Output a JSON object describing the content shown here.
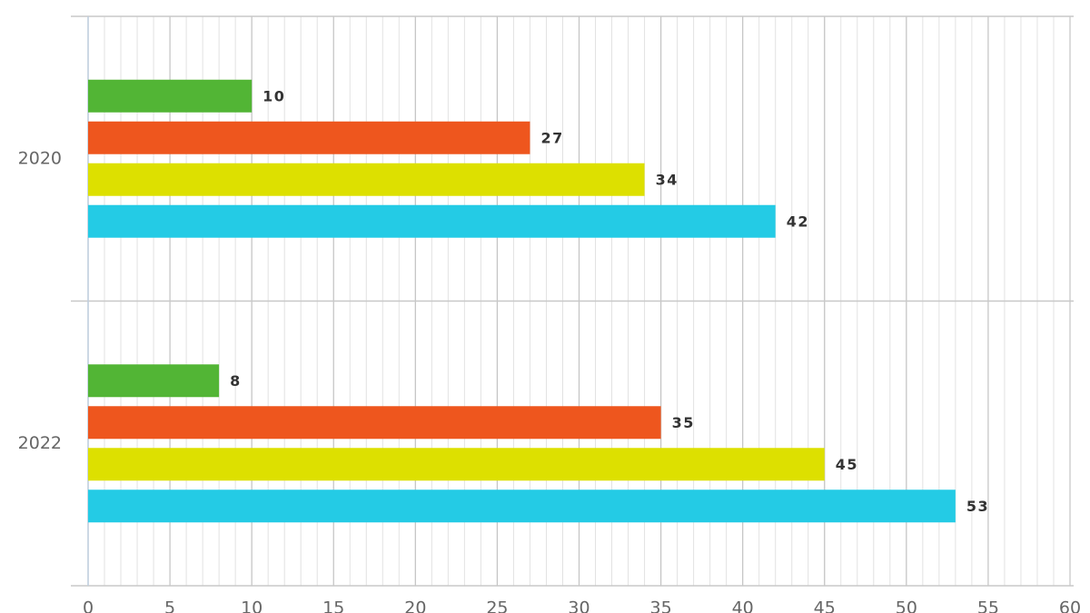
{
  "chart_data": {
    "type": "barh",
    "categories": [
      "2020",
      "2022"
    ],
    "series": [
      {
        "color": "#52b535",
        "values": [
          10,
          8
        ]
      },
      {
        "color": "#ee561e",
        "values": [
          27,
          35
        ]
      },
      {
        "color": "#dde000",
        "values": [
          34,
          45
        ]
      },
      {
        "color": "#24cbe5",
        "values": [
          42,
          53
        ]
      }
    ],
    "xlim": [
      0,
      60
    ],
    "xticks": [
      0,
      5,
      10,
      15,
      20,
      25,
      30,
      35,
      40,
      45,
      50,
      55,
      60
    ],
    "grid": true,
    "minor_grid_step": 1
  }
}
